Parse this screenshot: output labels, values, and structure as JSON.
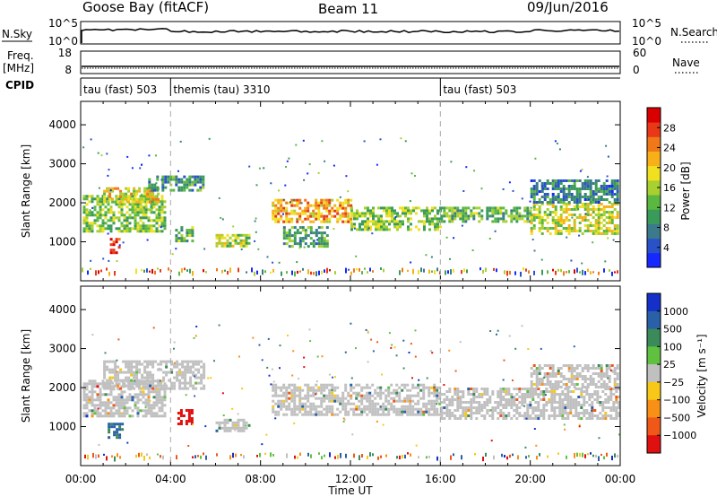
{
  "header": {
    "station": "Goose Bay (fitACF)",
    "beam": "Beam 11",
    "date": "09/Jun/2016"
  },
  "strip_nsky": {
    "left_label": "N.Sky",
    "left_ticks": [
      "10^5",
      "10^0"
    ],
    "right_ticks": [
      "10^5",
      "10^0"
    ],
    "right_label": "N.Search"
  },
  "strip_freq": {
    "left_label_1": "Freq.",
    "left_label_2": "[MHz]",
    "left_ticks": [
      "18",
      "8"
    ],
    "right_ticks": [
      "60",
      "0"
    ],
    "right_label": "Nave"
  },
  "cpid": {
    "label": "CPID",
    "segments": [
      {
        "text": "tau (fast) 503",
        "start_hour": 0
      },
      {
        "text": "themis (tau) 3310",
        "start_hour": 4
      },
      {
        "text": "tau (fast) 503",
        "start_hour": 16
      }
    ]
  },
  "chart_data": [
    {
      "type": "heatmap",
      "name": "power",
      "ylabel": "Slant Range [km]",
      "xlim_hours": [
        0,
        24
      ],
      "ylim_km": [
        0,
        4600
      ],
      "y_ticks": [
        1000,
        2000,
        3000,
        4000
      ],
      "colorbar_label": "Power [dB]",
      "colorbar_ticks": [
        "4",
        "8",
        "12",
        "16",
        "20",
        "24",
        "28"
      ],
      "colorbar_colors": [
        "#1428ff",
        "#2a52c8",
        "#3a7a8a",
        "#3a9a5a",
        "#5ab840",
        "#a8d030",
        "#f0e020",
        "#f8b018",
        "#f07818",
        "#e83818",
        "#d80000"
      ],
      "bands": [
        {
          "t0": 0.1,
          "t1": 3.8,
          "r0": 1300,
          "r1": 2200,
          "level": 0.45
        },
        {
          "t0": 1.0,
          "t1": 3.5,
          "r0": 2000,
          "r1": 2400,
          "level": 0.6
        },
        {
          "t0": 3.0,
          "t1": 5.5,
          "r0": 2300,
          "r1": 2700,
          "level": 0.3
        },
        {
          "t0": 4.2,
          "t1": 5.0,
          "r0": 1000,
          "r1": 1400,
          "level": 0.4
        },
        {
          "t0": 6.0,
          "t1": 7.5,
          "r0": 900,
          "r1": 1200,
          "level": 0.5
        },
        {
          "t0": 8.5,
          "t1": 12.0,
          "r0": 1500,
          "r1": 2100,
          "level": 0.7
        },
        {
          "t0": 9.0,
          "t1": 11.0,
          "r0": 900,
          "r1": 1400,
          "level": 0.35
        },
        {
          "t0": 12.0,
          "t1": 16.0,
          "r0": 1300,
          "r1": 1900,
          "level": 0.45
        },
        {
          "t0": 16.0,
          "t1": 20.0,
          "r0": 1500,
          "r1": 1900,
          "level": 0.4
        },
        {
          "t0": 20.0,
          "t1": 23.9,
          "r0": 1200,
          "r1": 2000,
          "level": 0.55
        },
        {
          "t0": 20.0,
          "t1": 23.9,
          "r0": 2000,
          "r1": 2600,
          "level": 0.25
        },
        {
          "t0": 1.3,
          "t1": 1.7,
          "r0": 700,
          "r1": 1100,
          "level": 0.9
        }
      ]
    },
    {
      "type": "heatmap",
      "name": "velocity",
      "ylabel": "Slant Range [km]",
      "xlim_hours": [
        0,
        24
      ],
      "ylim_km": [
        0,
        4600
      ],
      "y_ticks": [
        1000,
        2000,
        3000,
        4000
      ],
      "colorbar_label": "Velocity [m s⁻¹]",
      "colorbar_ticks": [
        "1000",
        "500",
        "100",
        "25",
        "−25",
        "−100",
        "−500",
        "−1000"
      ],
      "colorbar_colors": [
        "#1430c8",
        "#2a60a8",
        "#3a8a5a",
        "#60c040",
        "#c0c0c0",
        "#f8c818",
        "#f89018",
        "#f05818",
        "#e01010"
      ],
      "bands": [
        {
          "t0": 0.1,
          "t1": 3.8,
          "r0": 1300,
          "r1": 2200,
          "level": 0.0
        },
        {
          "t0": 1.0,
          "t1": 5.5,
          "r0": 2000,
          "r1": 2700,
          "level": 0.0
        },
        {
          "t0": 6.0,
          "t1": 7.5,
          "r0": 900,
          "r1": 1200,
          "level": 0.0
        },
        {
          "t0": 8.5,
          "t1": 16.0,
          "r0": 1300,
          "r1": 2100,
          "level": 0.0
        },
        {
          "t0": 16.0,
          "t1": 23.9,
          "r0": 1200,
          "r1": 2000,
          "level": 0.0
        },
        {
          "t0": 20.0,
          "t1": 23.9,
          "r0": 2000,
          "r1": 2600,
          "level": 0.0
        },
        {
          "t0": 4.3,
          "t1": 5.0,
          "r0": 1100,
          "r1": 1450,
          "level": -0.9
        },
        {
          "t0": 1.2,
          "t1": 1.8,
          "r0": 700,
          "r1": 1100,
          "level": 0.6
        }
      ]
    }
  ],
  "x_axis": {
    "label": "Time UT",
    "ticks": [
      "00:00",
      "04:00",
      "08:00",
      "12:00",
      "16:00",
      "20:00",
      "00:00"
    ],
    "tick_hours": [
      0,
      4,
      8,
      12,
      16,
      20,
      24
    ]
  }
}
